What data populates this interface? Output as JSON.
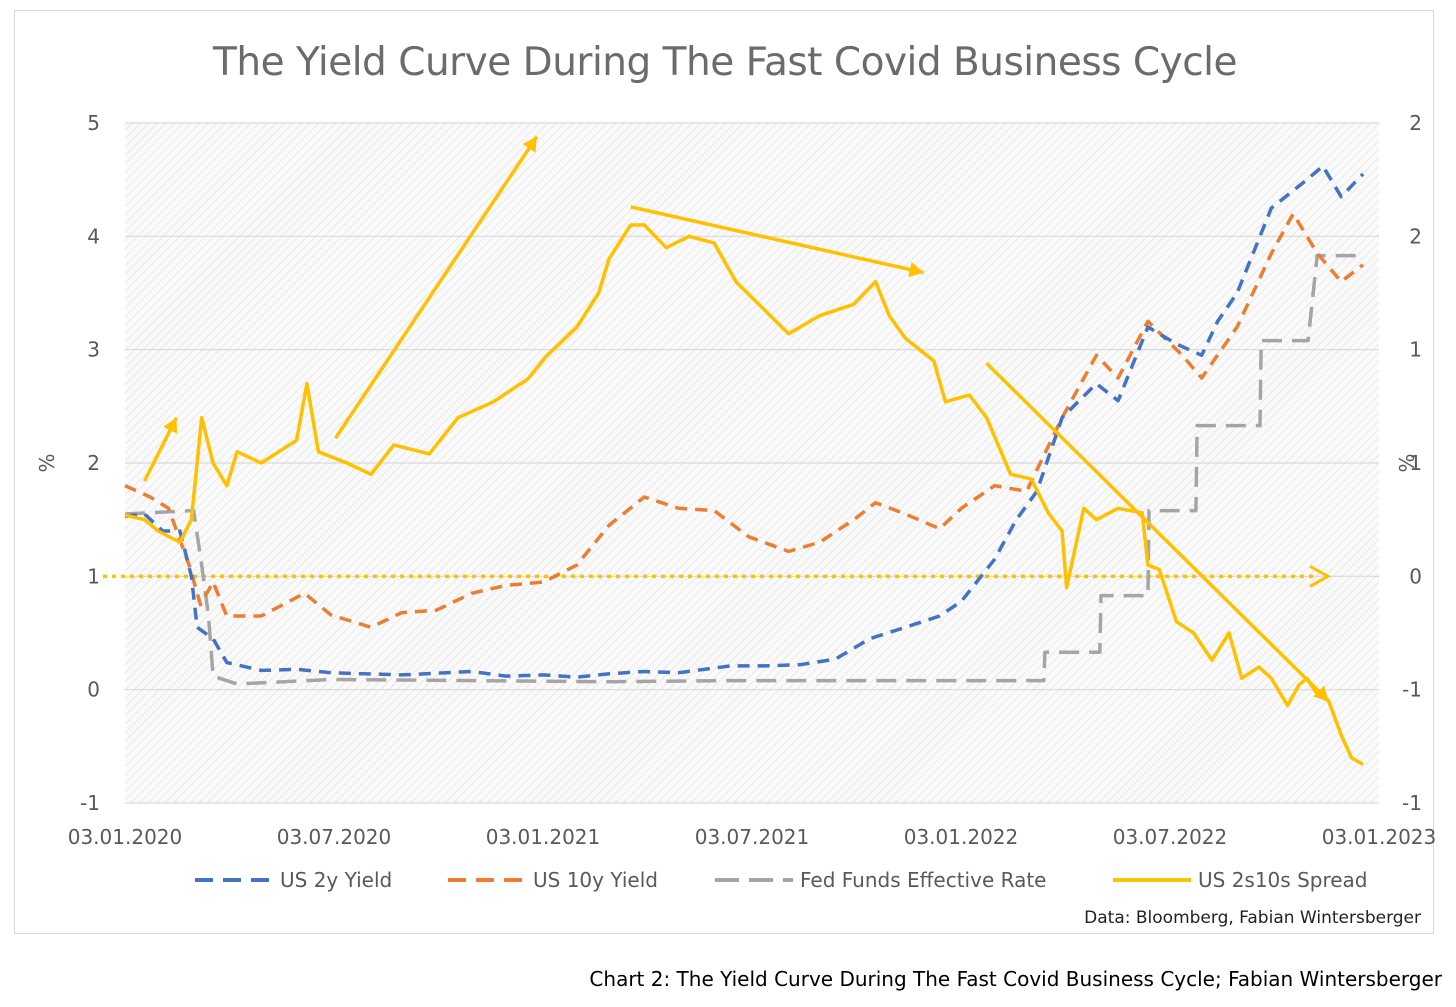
{
  "caption": "Chart 2: The Yield Curve During The Fast Covid Business Cycle; Fabian Wintersberger",
  "chart_data": {
    "type": "line",
    "title": "The Yield Curve During The Fast Covid Business Cycle",
    "ylabel_left": "%",
    "ylabel_right": "%",
    "source": "Data: Bloomberg, Fabian Wintersberger",
    "ylim_left": [
      -1,
      5
    ],
    "ylim_right": [
      -1,
      2
    ],
    "yticks_left": [
      "5",
      "4",
      "3",
      "2",
      "1",
      "0",
      "-1"
    ],
    "yticks_right": [
      "2",
      "2",
      "1",
      "1",
      "0",
      "-1",
      "-1"
    ],
    "xticks": [
      "03.01.2020",
      "03.07.2020",
      "03.01.2021",
      "03.07.2021",
      "03.01.2022",
      "03.07.2022",
      "03.01.2023"
    ],
    "xlim": [
      "2020-01-03",
      "2023-01-03"
    ],
    "grid": true,
    "legend_position": "bottom",
    "colors": {
      "us2y": "#4472c4",
      "us10y": "#ed7d31",
      "fedfunds": "#a5a5a5",
      "spread": "#ffc000",
      "zero_line": "#ffc000",
      "arrows": "#ffc000"
    },
    "series": [
      {
        "name": "US 2y Yield",
        "key": "us2y",
        "axis": "left",
        "style": "dashed",
        "points": [
          [
            "2020-01-03",
            1.53
          ],
          [
            "2020-01-20",
            1.55
          ],
          [
            "2020-02-05",
            1.4
          ],
          [
            "2020-02-20",
            1.4
          ],
          [
            "2020-03-01",
            1.0
          ],
          [
            "2020-03-06",
            0.55
          ],
          [
            "2020-03-20",
            0.45
          ],
          [
            "2020-04-01",
            0.24
          ],
          [
            "2020-05-01",
            0.17
          ],
          [
            "2020-06-01",
            0.18
          ],
          [
            "2020-07-01",
            0.15
          ],
          [
            "2020-09-01",
            0.13
          ],
          [
            "2020-11-01",
            0.16
          ],
          [
            "2020-12-01",
            0.12
          ],
          [
            "2021-01-03",
            0.13
          ],
          [
            "2021-02-01",
            0.11
          ],
          [
            "2021-03-01",
            0.14
          ],
          [
            "2021-04-01",
            0.16
          ],
          [
            "2021-05-01",
            0.15
          ],
          [
            "2021-06-15",
            0.21
          ],
          [
            "2021-07-15",
            0.21
          ],
          [
            "2021-08-15",
            0.22
          ],
          [
            "2021-09-15",
            0.27
          ],
          [
            "2021-10-15",
            0.45
          ],
          [
            "2021-11-15",
            0.55
          ],
          [
            "2021-12-15",
            0.65
          ],
          [
            "2022-01-03",
            0.78
          ],
          [
            "2022-02-01",
            1.15
          ],
          [
            "2022-02-20",
            1.5
          ],
          [
            "2022-03-10",
            1.75
          ],
          [
            "2022-04-01",
            2.4
          ],
          [
            "2022-05-01",
            2.7
          ],
          [
            "2022-05-20",
            2.55
          ],
          [
            "2022-06-15",
            3.2
          ],
          [
            "2022-07-10",
            3.05
          ],
          [
            "2022-08-01",
            2.95
          ],
          [
            "2022-08-15",
            3.25
          ],
          [
            "2022-09-01",
            3.5
          ],
          [
            "2022-10-01",
            4.25
          ],
          [
            "2022-11-01",
            4.5
          ],
          [
            "2022-11-15",
            4.62
          ],
          [
            "2022-12-01",
            4.35
          ],
          [
            "2022-12-20",
            4.55
          ]
        ]
      },
      {
        "name": "US 10y Yield",
        "key": "us10y",
        "axis": "left",
        "style": "dashed",
        "points": [
          [
            "2020-01-03",
            1.8
          ],
          [
            "2020-01-25",
            1.7
          ],
          [
            "2020-02-10",
            1.6
          ],
          [
            "2020-02-28",
            1.1
          ],
          [
            "2020-03-09",
            0.75
          ],
          [
            "2020-03-20",
            0.95
          ],
          [
            "2020-04-01",
            0.65
          ],
          [
            "2020-05-01",
            0.65
          ],
          [
            "2020-06-08",
            0.85
          ],
          [
            "2020-07-01",
            0.66
          ],
          [
            "2020-08-05",
            0.55
          ],
          [
            "2020-09-01",
            0.68
          ],
          [
            "2020-10-01",
            0.7
          ],
          [
            "2020-11-01",
            0.85
          ],
          [
            "2020-12-01",
            0.92
          ],
          [
            "2021-01-03",
            0.95
          ],
          [
            "2021-02-01",
            1.1
          ],
          [
            "2021-03-01",
            1.45
          ],
          [
            "2021-04-01",
            1.7
          ],
          [
            "2021-05-01",
            1.6
          ],
          [
            "2021-06-01",
            1.58
          ],
          [
            "2021-07-01",
            1.35
          ],
          [
            "2021-08-05",
            1.22
          ],
          [
            "2021-09-01",
            1.3
          ],
          [
            "2021-10-01",
            1.5
          ],
          [
            "2021-10-20",
            1.65
          ],
          [
            "2021-11-15",
            1.55
          ],
          [
            "2021-12-15",
            1.42
          ],
          [
            "2022-01-03",
            1.6
          ],
          [
            "2022-02-01",
            1.8
          ],
          [
            "2022-03-01",
            1.75
          ],
          [
            "2022-04-01",
            2.4
          ],
          [
            "2022-05-01",
            2.95
          ],
          [
            "2022-05-20",
            2.75
          ],
          [
            "2022-06-15",
            3.25
          ],
          [
            "2022-07-15",
            2.95
          ],
          [
            "2022-08-01",
            2.75
          ],
          [
            "2022-09-01",
            3.2
          ],
          [
            "2022-10-01",
            3.85
          ],
          [
            "2022-10-20",
            4.2
          ],
          [
            "2022-11-10",
            3.85
          ],
          [
            "2022-12-01",
            3.6
          ],
          [
            "2022-12-20",
            3.75
          ]
        ]
      },
      {
        "name": "Fed Funds Effective Rate",
        "key": "fedfunds",
        "axis": "left",
        "style": "dashed",
        "points": [
          [
            "2020-01-03",
            1.55
          ],
          [
            "2020-03-03",
            1.58
          ],
          [
            "2020-03-10",
            1.1
          ],
          [
            "2020-03-16",
            0.65
          ],
          [
            "2020-03-20",
            0.12
          ],
          [
            "2020-04-10",
            0.05
          ],
          [
            "2020-07-01",
            0.09
          ],
          [
            "2021-03-01",
            0.07
          ],
          [
            "2021-06-17",
            0.08
          ],
          [
            "2021-08-01",
            0.08
          ],
          [
            "2022-01-03",
            0.08
          ],
          [
            "2022-03-16",
            0.08
          ],
          [
            "2022-03-17",
            0.33
          ],
          [
            "2022-05-04",
            0.33
          ],
          [
            "2022-05-05",
            0.83
          ],
          [
            "2022-06-15",
            0.83
          ],
          [
            "2022-06-16",
            1.58
          ],
          [
            "2022-07-27",
            1.58
          ],
          [
            "2022-07-28",
            2.33
          ],
          [
            "2022-09-21",
            2.33
          ],
          [
            "2022-09-22",
            3.08
          ],
          [
            "2022-11-02",
            3.08
          ],
          [
            "2022-11-10",
            3.83
          ],
          [
            "2022-12-20",
            3.83
          ]
        ]
      },
      {
        "name": "US 2s10s Spread",
        "key": "spread",
        "axis": "right",
        "style": "solid",
        "points": [
          [
            "2020-01-03",
            0.27
          ],
          [
            "2020-01-20",
            0.25
          ],
          [
            "2020-02-01",
            0.2
          ],
          [
            "2020-02-20",
            0.15
          ],
          [
            "2020-03-01",
            0.25
          ],
          [
            "2020-03-10",
            0.7
          ],
          [
            "2020-03-20",
            0.5
          ],
          [
            "2020-04-01",
            0.4
          ],
          [
            "2020-04-10",
            0.55
          ],
          [
            "2020-05-01",
            0.5
          ],
          [
            "2020-06-01",
            0.6
          ],
          [
            "2020-06-10",
            0.85
          ],
          [
            "2020-06-20",
            0.55
          ],
          [
            "2020-07-15",
            0.5
          ],
          [
            "2020-08-05",
            0.45
          ],
          [
            "2020-08-25",
            0.58
          ],
          [
            "2020-09-25",
            0.54
          ],
          [
            "2020-10-20",
            0.7
          ],
          [
            "2020-11-20",
            0.77
          ],
          [
            "2020-12-20",
            0.87
          ],
          [
            "2021-01-05",
            0.97
          ],
          [
            "2021-02-01",
            1.1
          ],
          [
            "2021-02-20",
            1.25
          ],
          [
            "2021-03-01",
            1.4
          ],
          [
            "2021-03-20",
            1.55
          ],
          [
            "2021-04-01",
            1.55
          ],
          [
            "2021-04-20",
            1.45
          ],
          [
            "2021-05-10",
            1.5
          ],
          [
            "2021-06-01",
            1.47
          ],
          [
            "2021-06-20",
            1.3
          ],
          [
            "2021-07-20",
            1.15
          ],
          [
            "2021-08-05",
            1.07
          ],
          [
            "2021-09-01",
            1.15
          ],
          [
            "2021-10-01",
            1.2
          ],
          [
            "2021-10-20",
            1.3
          ],
          [
            "2021-11-01",
            1.15
          ],
          [
            "2021-11-15",
            1.05
          ],
          [
            "2021-12-10",
            0.95
          ],
          [
            "2021-12-20",
            0.77
          ],
          [
            "2022-01-10",
            0.8
          ],
          [
            "2022-01-25",
            0.7
          ],
          [
            "2022-02-15",
            0.45
          ],
          [
            "2022-03-05",
            0.43
          ],
          [
            "2022-03-20",
            0.28
          ],
          [
            "2022-04-01",
            0.2
          ],
          [
            "2022-04-05",
            -0.05
          ],
          [
            "2022-04-20",
            0.3
          ],
          [
            "2022-05-01",
            0.25
          ],
          [
            "2022-05-20",
            0.3
          ],
          [
            "2022-06-10",
            0.28
          ],
          [
            "2022-06-15",
            0.05
          ],
          [
            "2022-06-25",
            0.03
          ],
          [
            "2022-07-10",
            -0.2
          ],
          [
            "2022-07-25",
            -0.25
          ],
          [
            "2022-08-10",
            -0.37
          ],
          [
            "2022-08-25",
            -0.25
          ],
          [
            "2022-09-05",
            -0.45
          ],
          [
            "2022-09-20",
            -0.4
          ],
          [
            "2022-10-01",
            -0.45
          ],
          [
            "2022-10-15",
            -0.57
          ],
          [
            "2022-10-25",
            -0.48
          ],
          [
            "2022-11-01",
            -0.45
          ],
          [
            "2022-11-10",
            -0.52
          ],
          [
            "2022-11-20",
            -0.55
          ],
          [
            "2022-12-01",
            -0.7
          ],
          [
            "2022-12-10",
            -0.8
          ],
          [
            "2022-12-20",
            -0.83
          ]
        ]
      }
    ],
    "zero_line": {
      "axis": "right",
      "value": 0
    },
    "annotation_arrows": [
      {
        "from": [
          "2020-01-20",
          0.42
        ],
        "to": [
          "2020-02-17",
          0.7
        ]
      },
      {
        "from": [
          "2020-07-05",
          0.61
        ],
        "to": [
          "2020-12-28",
          1.94
        ]
      },
      {
        "from": [
          "2021-03-20",
          1.63
        ],
        "to": [
          "2021-12-01",
          1.34
        ]
      },
      {
        "from": [
          "2022-01-25",
          0.94
        ],
        "to": [
          "2022-11-20",
          -0.55
        ]
      }
    ]
  }
}
